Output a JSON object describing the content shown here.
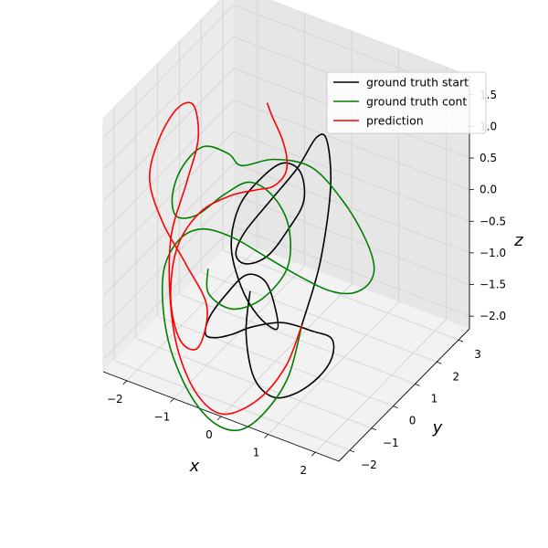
{
  "chart_data": {
    "type": "line",
    "projection": "3d",
    "title": "",
    "xlabel": "x",
    "ylabel": "y",
    "zlabel": "z",
    "xlim": [
      -2.5,
      2.5
    ],
    "ylim": [
      -2.5,
      3.5
    ],
    "zlim": [
      -2.2,
      1.8
    ],
    "x_ticks": [
      -2,
      -1,
      0,
      1,
      2
    ],
    "x_tick_labels": [
      "−2",
      "−1",
      "0",
      "1",
      "2"
    ],
    "y_ticks": [
      -2,
      -1,
      0,
      1,
      2,
      3
    ],
    "y_tick_labels": [
      "−2",
      "−1",
      "0",
      "1",
      "2",
      "3"
    ],
    "z_ticks": [
      -2.0,
      -1.5,
      -1.0,
      -0.5,
      0.0,
      0.5,
      1.0,
      1.5
    ],
    "z_tick_labels": [
      "−2.0",
      "−1.5",
      "−1.0",
      "−0.5",
      "0.0",
      "0.5",
      "1.0",
      "1.5"
    ],
    "grid": true,
    "legend_position": "top-right",
    "series": [
      {
        "name": "ground truth start",
        "color": "#000000",
        "points": [
          [
            1.3,
            -1.6,
            -0.7
          ],
          [
            1.5,
            -1.2,
            0.2
          ],
          [
            1.4,
            -0.5,
            1.1
          ],
          [
            1.0,
            0.2,
            1.5
          ],
          [
            0.5,
            0.8,
            1.2
          ],
          [
            0.0,
            1.0,
            0.5
          ],
          [
            -0.5,
            0.8,
            -0.1
          ],
          [
            -0.8,
            0.3,
            -0.5
          ],
          [
            -0.7,
            -0.3,
            -0.6
          ],
          [
            -0.3,
            -0.7,
            -0.5
          ],
          [
            0.2,
            -0.8,
            -0.2
          ],
          [
            0.5,
            -0.5,
            0.2
          ],
          [
            0.6,
            0.0,
            0.5
          ],
          [
            0.3,
            0.5,
            0.7
          ],
          [
            -0.2,
            0.8,
            0.6
          ],
          [
            -0.6,
            0.7,
            0.3
          ],
          [
            -0.9,
            0.3,
            -0.1
          ],
          [
            -0.8,
            -0.3,
            -0.5
          ],
          [
            -0.4,
            -0.7,
            -0.9
          ],
          [
            0.0,
            -0.8,
            -1.2
          ],
          [
            0.3,
            -0.6,
            -1.4
          ],
          [
            0.1,
            -0.2,
            -1.3
          ],
          [
            -0.3,
            0.2,
            -1.1
          ],
          [
            -0.8,
            0.4,
            -1.2
          ],
          [
            -1.2,
            0.3,
            -1.6
          ],
          [
            -1.4,
            0.0,
            -1.9
          ],
          [
            -1.3,
            -0.4,
            -2.0
          ],
          [
            -1.0,
            -0.6,
            -1.9
          ],
          [
            -0.6,
            -0.7,
            -1.7
          ],
          [
            -0.2,
            -0.6,
            -1.5
          ],
          [
            0.3,
            -0.3,
            -1.4
          ],
          [
            0.8,
            0.0,
            -1.5
          ],
          [
            1.1,
            0.2,
            -1.6
          ],
          [
            1.2,
            0.0,
            -1.8
          ],
          [
            1.1,
            -0.4,
            -2.0
          ],
          [
            0.8,
            -0.8,
            -2.2
          ],
          [
            0.4,
            -1.0,
            -2.3
          ],
          [
            0.0,
            -1.0,
            -2.1
          ],
          [
            -0.3,
            -0.7,
            -1.6
          ],
          [
            -0.4,
            -0.3,
            -1.1
          ]
        ]
      },
      {
        "name": "ground truth cont",
        "color": "#008000",
        "points": [
          [
            1.3,
            -1.6,
            -0.7
          ],
          [
            1.2,
            -2.0,
            -1.4
          ],
          [
            0.9,
            -2.4,
            -1.9
          ],
          [
            0.5,
            -2.7,
            -2.2
          ],
          [
            0.0,
            -2.8,
            -2.2
          ],
          [
            -0.6,
            -2.6,
            -2.0
          ],
          [
            -1.2,
            -2.2,
            -1.6
          ],
          [
            -1.6,
            -1.7,
            -1.2
          ],
          [
            -1.8,
            -1.2,
            -0.8
          ],
          [
            -1.7,
            -0.7,
            -0.5
          ],
          [
            -1.4,
            -0.3,
            -0.4
          ],
          [
            -0.9,
            0.0,
            -0.5
          ],
          [
            -0.3,
            0.2,
            -0.7
          ],
          [
            0.3,
            0.4,
            -0.9
          ],
          [
            0.9,
            0.5,
            -1.0
          ],
          [
            1.4,
            0.5,
            -0.9
          ],
          [
            1.8,
            0.4,
            -0.6
          ],
          [
            2.0,
            0.2,
            -0.2
          ],
          [
            1.8,
            0.2,
            0.2
          ],
          [
            1.2,
            0.5,
            0.5
          ],
          [
            0.4,
            0.8,
            0.7
          ],
          [
            -0.4,
            0.8,
            0.6
          ],
          [
            -0.9,
            0.4,
            0.5
          ],
          [
            -1.0,
            0.0,
            0.8
          ],
          [
            -1.3,
            -0.5,
            1.0
          ],
          [
            -1.7,
            -0.6,
            0.6
          ],
          [
            -2.0,
            -0.4,
            0.0
          ],
          [
            -2.1,
            0.0,
            -0.5
          ],
          [
            -1.9,
            0.5,
            -0.6
          ],
          [
            -1.5,
            0.9,
            -0.3
          ],
          [
            -1.0,
            1.0,
            0.0
          ],
          [
            -0.4,
            0.8,
            0.0
          ],
          [
            0.1,
            0.4,
            -0.2
          ],
          [
            0.3,
            -0.1,
            -0.6
          ],
          [
            0.0,
            -0.6,
            -1.0
          ],
          [
            -0.5,
            -0.9,
            -1.2
          ],
          [
            -1.0,
            -0.9,
            -1.1
          ],
          [
            -1.2,
            -0.5,
            -0.9
          ]
        ]
      },
      {
        "name": "prediction",
        "color": "#ff0000",
        "points": [
          [
            1.3,
            -1.6,
            -0.7
          ],
          [
            1.1,
            -1.9,
            -1.3
          ],
          [
            0.7,
            -2.3,
            -1.8
          ],
          [
            0.1,
            -2.6,
            -2.1
          ],
          [
            -0.5,
            -2.5,
            -2.0
          ],
          [
            -1.1,
            -2.1,
            -1.6
          ],
          [
            -1.5,
            -1.6,
            -1.0
          ],
          [
            -1.7,
            -1.1,
            -0.3
          ],
          [
            -1.6,
            -0.6,
            0.4
          ],
          [
            -1.5,
            -0.3,
            1.0
          ],
          [
            -1.6,
            -0.3,
            1.5
          ],
          [
            -1.8,
            -0.6,
            1.5
          ],
          [
            -2.1,
            -0.8,
            1.0
          ],
          [
            -2.3,
            -0.8,
            0.3
          ],
          [
            -2.2,
            -0.4,
            -0.5
          ],
          [
            -1.9,
            0.0,
            -1.2
          ],
          [
            -1.5,
            0.1,
            -1.8
          ],
          [
            -1.5,
            -0.3,
            -2.3
          ],
          [
            -1.7,
            -0.7,
            -2.1
          ],
          [
            -1.9,
            -0.7,
            -1.5
          ],
          [
            -1.9,
            -0.4,
            -0.8
          ],
          [
            -1.6,
            0.0,
            -0.3
          ],
          [
            -1.1,
            0.3,
            0.0
          ],
          [
            -0.6,
            0.4,
            0.2
          ],
          [
            -0.2,
            0.3,
            0.4
          ],
          [
            0.1,
            0.2,
            0.7
          ],
          [
            0.2,
            0.1,
            1.0
          ],
          [
            0.1,
            0.1,
            1.3
          ],
          [
            -0.2,
            0.3,
            1.5
          ],
          [
            -0.5,
            0.7,
            1.5
          ]
        ]
      }
    ]
  }
}
